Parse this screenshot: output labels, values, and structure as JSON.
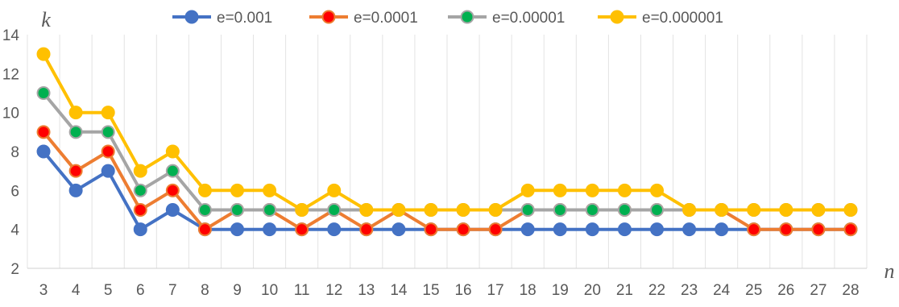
{
  "chart_data": {
    "type": "line",
    "xlabel": "n",
    "ylabel": "k",
    "x": [
      3,
      4,
      5,
      6,
      7,
      8,
      9,
      10,
      11,
      12,
      13,
      14,
      15,
      16,
      17,
      18,
      19,
      20,
      21,
      22,
      23,
      24,
      25,
      26,
      27,
      28
    ],
    "ylim": [
      2,
      14
    ],
    "yticks": [
      2,
      4,
      6,
      8,
      10,
      12,
      14
    ],
    "grid": "vertical",
    "legend_position": "top",
    "series": [
      {
        "name": "e=0.001",
        "color": "#4472C4",
        "values": [
          8,
          6,
          7,
          4,
          5,
          4,
          4,
          4,
          4,
          4,
          4,
          4,
          4,
          4,
          4,
          4,
          4,
          4,
          4,
          4,
          4,
          4,
          4,
          4,
          4,
          4
        ]
      },
      {
        "name": "e=0.0001",
        "color": "#ED7D31",
        "marker_color": "#FF0000",
        "values": [
          9,
          7,
          8,
          5,
          6,
          4,
          5,
          5,
          4,
          5,
          4,
          5,
          4,
          4,
          4,
          5,
          5,
          5,
          5,
          5,
          5,
          5,
          4,
          4,
          4,
          4
        ]
      },
      {
        "name": "e=0.00001",
        "color": "#A5A5A5",
        "marker_color": "#00B050",
        "values": [
          11,
          9,
          9,
          6,
          7,
          5,
          5,
          5,
          5,
          5,
          5,
          5,
          5,
          5,
          5,
          5,
          5,
          5,
          5,
          5,
          5,
          5,
          5,
          5,
          5,
          5
        ]
      },
      {
        "name": "e=0.000001",
        "color": "#FFC000",
        "values": [
          13,
          10,
          10,
          7,
          8,
          6,
          6,
          6,
          5,
          6,
          5,
          5,
          5,
          5,
          5,
          6,
          6,
          6,
          6,
          6,
          5,
          5,
          5,
          5,
          5,
          5
        ]
      }
    ]
  }
}
